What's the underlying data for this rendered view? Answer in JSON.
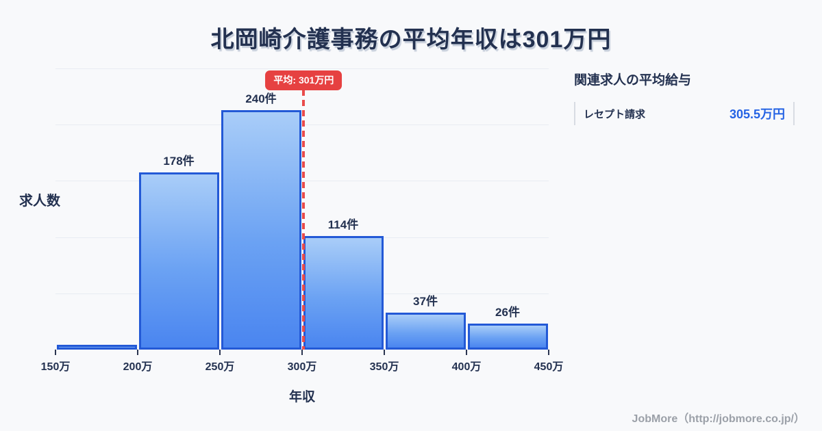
{
  "title": "北岡崎介護事務の平均年収は301万円",
  "chart_data": {
    "type": "bar",
    "title": "北岡崎介護事務の平均年収は301万円",
    "xlabel": "年収",
    "ylabel": "求人数",
    "categories": [
      "150万-200万",
      "200万-250万",
      "250万-300万",
      "300万-350万",
      "350万-400万",
      "400万-450万"
    ],
    "values": [
      5,
      178,
      240,
      114,
      37,
      26
    ],
    "bar_labels": [
      "",
      "178件",
      "240件",
      "114件",
      "37件",
      "26件"
    ],
    "x_ticks": [
      "150万",
      "200万",
      "250万",
      "300万",
      "350万",
      "400万",
      "450万"
    ],
    "x_range": [
      150,
      450
    ],
    "ylim": [
      0,
      282
    ],
    "grid": "horizontal",
    "average": {
      "value": 301,
      "label": "平均: 301万円"
    },
    "colors": {
      "bar_border": "#2359d6",
      "bar_fill_top": "#a9cdf8",
      "bar_fill_bottom": "#4a85f0",
      "average_line": "#e94b4b",
      "badge_background": "#e64141",
      "badge_text": "#ffffff",
      "axis_text": "#233150",
      "gridline": "#e8ecf2",
      "background": "#f8f9fb"
    }
  },
  "side_panel": {
    "header": "関連求人の平均給与",
    "rows": [
      {
        "label": "レセプト請求",
        "value": "305.5万円"
      }
    ]
  },
  "footer": {
    "credit": "JobMore（http://jobmore.co.jp/）"
  }
}
